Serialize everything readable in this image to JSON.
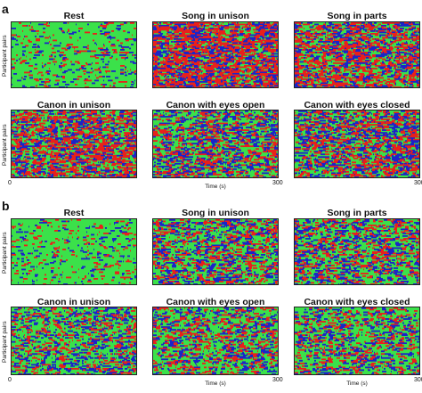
{
  "colors": {
    "red": "#e8211b",
    "blue": "#1b25c8",
    "green": "#3be14a"
  },
  "figure": {
    "sections": [
      {
        "letter": "a",
        "panels": [
          {
            "title": "Rest",
            "ylabel": "Participant pairs",
            "xlabel": "",
            "x_start": "",
            "x_end": ""
          },
          {
            "title": "Song in unison",
            "ylabel": "",
            "xlabel": "",
            "x_start": "",
            "x_end": ""
          },
          {
            "title": "Song in parts",
            "ylabel": "",
            "xlabel": "",
            "x_start": "",
            "x_end": ""
          },
          {
            "title": "Canon in unison",
            "ylabel": "Participant pairs",
            "xlabel": "",
            "x_start": "0",
            "x_end": ""
          },
          {
            "title": "Canon with eyes open",
            "ylabel": "",
            "xlabel": "Time (s)",
            "x_start": "",
            "x_end": "300"
          },
          {
            "title": "Canon with eyes closed",
            "ylabel": "",
            "xlabel": "",
            "x_start": "",
            "x_end": "300"
          }
        ]
      },
      {
        "letter": "b",
        "panels": [
          {
            "title": "Rest",
            "ylabel": "Participant pairs",
            "xlabel": "",
            "x_start": "",
            "x_end": ""
          },
          {
            "title": "Song in unison",
            "ylabel": "",
            "xlabel": "",
            "x_start": "",
            "x_end": ""
          },
          {
            "title": "Song in parts",
            "ylabel": "",
            "xlabel": "",
            "x_start": "",
            "x_end": ""
          },
          {
            "title": "Canon in unison",
            "ylabel": "Participant pairs",
            "xlabel": "",
            "x_start": "0",
            "x_end": ""
          },
          {
            "title": "Canon with eyes open",
            "ylabel": "",
            "xlabel": "Time (s)",
            "x_start": "",
            "x_end": "300"
          },
          {
            "title": "Canon with eyes closed",
            "ylabel": "",
            "xlabel": "Time (s)",
            "x_start": "",
            "x_end": "300"
          }
        ]
      }
    ]
  },
  "chart_data": [
    {
      "type": "heatmap",
      "section": "a",
      "title": "Rest",
      "ylabel": "Participant pairs",
      "xlim": [
        0,
        300
      ],
      "x_ticks": [],
      "dominant": "green",
      "activity": 0.18
    },
    {
      "type": "heatmap",
      "section": "a",
      "title": "Song in unison",
      "ylabel": "",
      "xlim": [
        0,
        300
      ],
      "x_ticks": [],
      "dominant": "red",
      "activity": 0.8
    },
    {
      "type": "heatmap",
      "section": "a",
      "title": "Song in parts",
      "ylabel": "",
      "xlim": [
        0,
        300
      ],
      "x_ticks": [],
      "dominant": "red",
      "activity": 0.65
    },
    {
      "type": "heatmap",
      "section": "a",
      "title": "Canon in unison",
      "ylabel": "Participant pairs",
      "xlim": [
        0,
        300
      ],
      "x_ticks": [
        "0"
      ],
      "dominant": "red",
      "activity": 0.7
    },
    {
      "type": "heatmap",
      "section": "a",
      "title": "Canon with eyes open",
      "ylabel": "",
      "xlabel": "Time (s)",
      "xlim": [
        0,
        300
      ],
      "x_ticks": [
        "300"
      ],
      "dominant": "mixed",
      "activity": 0.55
    },
    {
      "type": "heatmap",
      "section": "a",
      "title": "Canon with eyes closed",
      "ylabel": "",
      "xlim": [
        0,
        300
      ],
      "x_ticks": [
        "300"
      ],
      "dominant": "mixed",
      "activity": 0.6
    },
    {
      "type": "heatmap",
      "section": "b",
      "title": "Rest",
      "ylabel": "Participant pairs",
      "xlim": [
        0,
        300
      ],
      "x_ticks": [],
      "dominant": "green",
      "activity": 0.15
    },
    {
      "type": "heatmap",
      "section": "b",
      "title": "Song in unison",
      "ylabel": "",
      "xlim": [
        0,
        300
      ],
      "x_ticks": [],
      "dominant": "mixed",
      "activity": 0.5
    },
    {
      "type": "heatmap",
      "section": "b",
      "title": "Song in parts",
      "ylabel": "",
      "xlim": [
        0,
        300
      ],
      "x_ticks": [],
      "dominant": "mixed",
      "activity": 0.5
    },
    {
      "type": "heatmap",
      "section": "b",
      "title": "Canon in unison",
      "ylabel": "Participant pairs",
      "xlim": [
        0,
        300
      ],
      "x_ticks": [
        "0"
      ],
      "dominant": "mixed",
      "activity": 0.45
    },
    {
      "type": "heatmap",
      "section": "b",
      "title": "Canon with eyes open",
      "ylabel": "",
      "xlabel": "Time (s)",
      "xlim": [
        0,
        300
      ],
      "x_ticks": [
        "300"
      ],
      "dominant": "mixed",
      "activity": 0.42
    },
    {
      "type": "heatmap",
      "section": "b",
      "title": "Canon with eyes closed",
      "ylabel": "",
      "xlabel": "Time (s)",
      "xlim": [
        0,
        300
      ],
      "x_ticks": [
        "300"
      ],
      "dominant": "mixed",
      "activity": 0.42
    }
  ]
}
